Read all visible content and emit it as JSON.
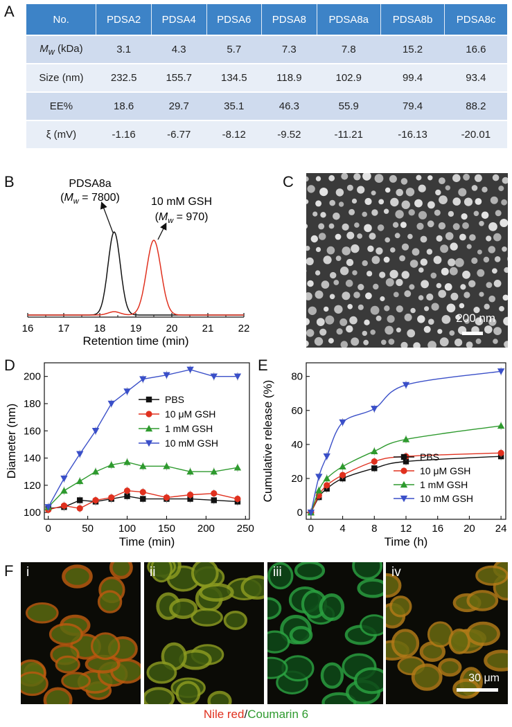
{
  "panel_labels": {
    "A": "A",
    "B": "B",
    "C": "C",
    "D": "D",
    "E": "E",
    "F": "F"
  },
  "table": {
    "headers": [
      "No.",
      "PDSA2",
      "PDSA4",
      "PDSA6",
      "PDSA8",
      "PDSA8a",
      "PDSA8b",
      "PDSA8c"
    ],
    "rows": [
      {
        "label_main": "M",
        "label_sub": "w",
        "label_rest": " (kDa)",
        "values": [
          "3.1",
          "4.3",
          "5.7",
          "7.3",
          "7.8",
          "15.2",
          "16.6"
        ]
      },
      {
        "label": "Size (nm)",
        "values": [
          "232.5",
          "155.7",
          "134.5",
          "118.9",
          "102.9",
          "99.4",
          "93.4"
        ]
      },
      {
        "label": "EE%",
        "values": [
          "18.6",
          "29.7",
          "35.1",
          "46.3",
          "55.9",
          "79.4",
          "88.2"
        ]
      },
      {
        "label": "ξ (mV)",
        "values": [
          "-1.16",
          "-6.77",
          "-8.12",
          "-9.52",
          "-11.21",
          "-16.13",
          "-20.01"
        ]
      }
    ]
  },
  "panelB": {
    "xlabel": "Retention time (min)",
    "ticks": [
      "16",
      "17",
      "18",
      "19",
      "20",
      "21",
      "22"
    ],
    "ann1": {
      "name": "PDSA8a",
      "mw_label": "M",
      "mw_sub": "w",
      "mw_value": " = 7800)",
      "open": "("
    },
    "ann2": {
      "name": "10 mM GSH",
      "mw_label": "M",
      "mw_sub": "w",
      "mw_value": " = 970)",
      "open": "("
    },
    "colors": {
      "pdsa": "#111111",
      "gsh": "#e0301e"
    }
  },
  "panelC": {
    "scale_label": "200 nm"
  },
  "chart_data": [
    {
      "type": "line",
      "title": "",
      "xlabel": "Retention time (min)",
      "ylabel": "",
      "xlim": [
        16,
        22
      ],
      "series": [
        {
          "name": "PDSA8a",
          "color": "#111111",
          "peak_x": 18.4,
          "width": 0.17,
          "height": 1.0
        },
        {
          "name": "10 mM GSH",
          "color": "#e0301e",
          "peak_x": 19.5,
          "width": 0.2,
          "height": 0.9
        }
      ]
    },
    {
      "type": "line",
      "xlabel": "Time (min)",
      "ylabel": "Diameter (nm)",
      "xlim": [
        -5,
        255
      ],
      "ylim": [
        95,
        210
      ],
      "xticks": [
        0,
        50,
        100,
        150,
        200,
        250
      ],
      "yticks": [
        100,
        120,
        140,
        160,
        180,
        200
      ],
      "series": [
        {
          "name": "PBS",
          "color": "#111111",
          "marker": "square",
          "x": [
            0,
            20,
            40,
            60,
            80,
            100,
            120,
            150,
            180,
            210,
            240
          ],
          "y": [
            103,
            104,
            109,
            108,
            110,
            112,
            110,
            110,
            110,
            109,
            108
          ]
        },
        {
          "name": "10 μM GSH",
          "color": "#e0301e",
          "marker": "circle",
          "x": [
            0,
            20,
            40,
            60,
            80,
            100,
            120,
            150,
            180,
            210,
            240
          ],
          "y": [
            102,
            105,
            103,
            109,
            111,
            116,
            115,
            111,
            113,
            114,
            110
          ]
        },
        {
          "name": "1 mM GSH",
          "color": "#2e9a2e",
          "marker": "triangle-up",
          "x": [
            0,
            20,
            40,
            60,
            80,
            100,
            120,
            150,
            180,
            210,
            240
          ],
          "y": [
            104,
            116,
            123,
            130,
            135,
            137,
            134,
            134,
            130,
            130,
            133
          ]
        },
        {
          "name": "10 mM GSH",
          "color": "#3a4fc8",
          "marker": "triangle-down",
          "x": [
            0,
            20,
            40,
            60,
            80,
            100,
            120,
            150,
            180,
            210,
            240
          ],
          "y": [
            104,
            125,
            143,
            160,
            180,
            189,
            198,
            201,
            205,
            200,
            200
          ]
        }
      ]
    },
    {
      "type": "line",
      "xlabel": "Time (h)",
      "ylabel": "Cumulative release (%)",
      "xlim": [
        -0.6,
        24.6
      ],
      "ylim": [
        -4,
        88
      ],
      "xticks": [
        0,
        4,
        8,
        12,
        16,
        20,
        24
      ],
      "yticks": [
        0,
        20,
        40,
        60,
        80
      ],
      "series": [
        {
          "name": "PBS",
          "color": "#111111",
          "marker": "square",
          "x": [
            0,
            1,
            2,
            4,
            8,
            12,
            24
          ],
          "y": [
            0,
            9,
            14,
            20,
            26,
            30,
            33
          ]
        },
        {
          "name": "10 μM GSH",
          "color": "#e0301e",
          "marker": "circle",
          "x": [
            0,
            1,
            2,
            4,
            8,
            12,
            24
          ],
          "y": [
            0,
            10,
            16,
            22,
            30,
            33,
            35
          ]
        },
        {
          "name": "1 mM GSH",
          "color": "#2e9a2e",
          "marker": "triangle-up",
          "x": [
            0,
            1,
            2,
            4,
            8,
            12,
            24
          ],
          "y": [
            0,
            13,
            20,
            27,
            36,
            43,
            51
          ]
        },
        {
          "name": "10 mM GSH",
          "color": "#3a4fc8",
          "marker": "triangle-down",
          "x": [
            0,
            1,
            2,
            4,
            8,
            12,
            24
          ],
          "y": [
            0,
            21,
            33,
            53,
            61,
            75,
            83
          ]
        }
      ]
    }
  ],
  "panelF": {
    "subpanels": [
      "i",
      "ii",
      "iii",
      "iv"
    ],
    "scale_label": "30 μm",
    "legend_red": "Nile red",
    "legend_sep": "/",
    "legend_green": "Coumarin 6",
    "red": "#e0301e",
    "green": "#2e9a2e"
  }
}
